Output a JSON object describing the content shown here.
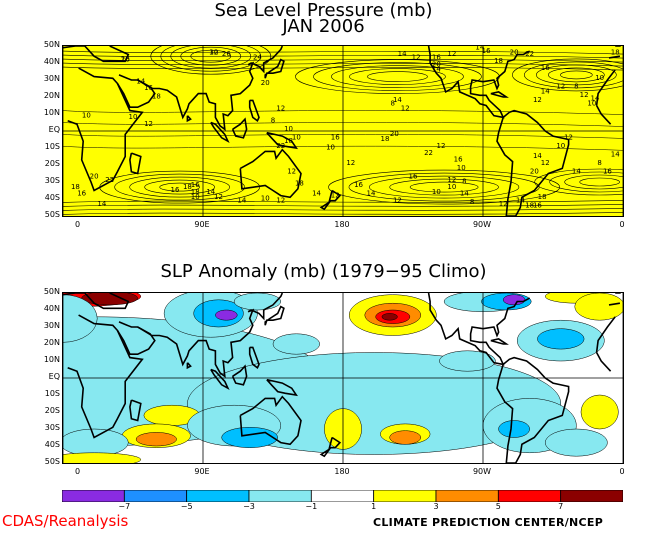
{
  "figure": {
    "top_title_line1": "Sea Level Pressure (mb)",
    "top_title_line2": "JAN 2006",
    "bottom_title": "SLP Anomaly (mb) (1979−95 Climo)",
    "credit_left": "CDAS/Reanalysis",
    "credit_right": "CLIMATE PREDICTION CENTER/NCEP"
  },
  "chart_data": [
    {
      "type": "heatmap",
      "title": "Sea Level Pressure (mb)",
      "subtitle": "JAN 2006",
      "x_tick_labels": [
        "0",
        "90E",
        "180",
        "90W",
        "0"
      ],
      "y_tick_labels": [
        "50N",
        "40N",
        "30N",
        "20N",
        "10N",
        "EQ",
        "10S",
        "20S",
        "30S",
        "40S",
        "50S"
      ],
      "fill_color": "#ffff00",
      "contour_labels": [
        "20",
        "30",
        "26",
        "24",
        "14",
        "16",
        "18",
        "20",
        "10",
        "12",
        "10",
        "12",
        "8",
        "10",
        "10",
        "18",
        "22",
        "12",
        "18",
        "14",
        "12",
        "12",
        "14",
        "16",
        "18",
        "16",
        "18",
        "14",
        "12",
        "10",
        "10",
        "18",
        "16",
        "14",
        "22",
        "20",
        "14",
        "20",
        "16",
        "14",
        "12",
        "12",
        "14",
        "16",
        "18",
        "20",
        "14",
        "12",
        "8",
        "12",
        "14",
        "16",
        "10",
        "12",
        "16",
        "14",
        "12",
        "10",
        "10",
        "12",
        "16",
        "18",
        "20",
        "22",
        "12",
        "16",
        "10",
        "8",
        "14",
        "8",
        "12",
        "14",
        "18",
        "16",
        "18",
        "20",
        "14",
        "12",
        "10",
        "12",
        "14",
        "8",
        "16",
        "14",
        "12",
        "10",
        "8",
        "10",
        "12",
        "14",
        "16",
        "18",
        "22",
        "16",
        "12"
      ],
      "legend": "none"
    },
    {
      "type": "heatmap",
      "title": "SLP Anomaly (mb) (1979−95 Climo)",
      "x_tick_labels": [
        "0",
        "90E",
        "180",
        "90W",
        "0"
      ],
      "y_tick_labels": [
        "50N",
        "40N",
        "30N",
        "20N",
        "10N",
        "EQ",
        "10S",
        "20S",
        "30S",
        "40S",
        "50S"
      ],
      "color_scale": {
        "boundaries": [
          "−7",
          "−5",
          "−3",
          "−1",
          "1",
          "3",
          "5",
          "7"
        ],
        "colors": [
          "#8a2be2",
          "#1e90ff",
          "#00bfff",
          "#87e8f0",
          "#ffffff",
          "#ffff00",
          "#ff8c00",
          "#ff0000",
          "#8b0000"
        ]
      },
      "legend": "bottom"
    }
  ]
}
